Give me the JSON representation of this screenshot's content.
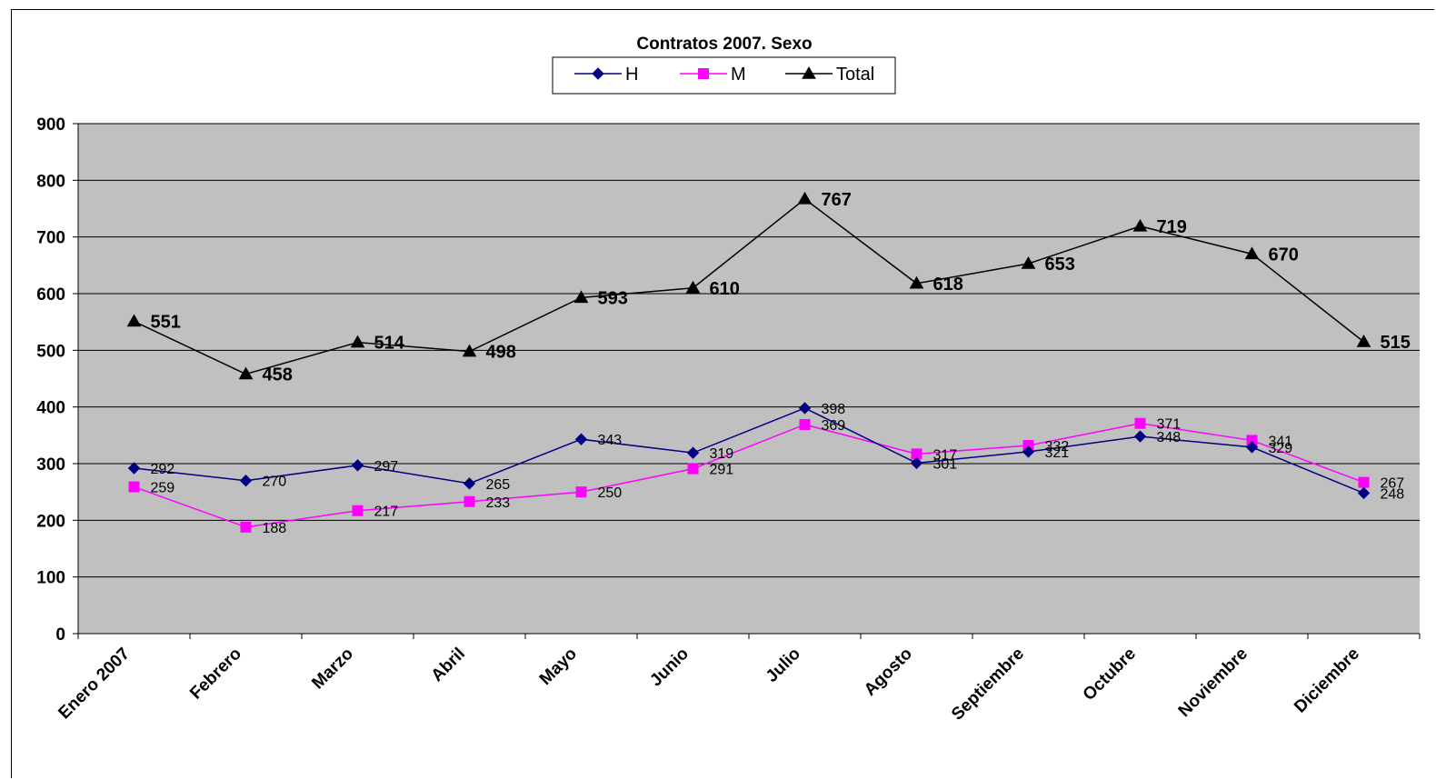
{
  "chart_data": {
    "type": "line",
    "title": "Contratos 2007. Sexo",
    "xlabel": "",
    "ylabel": "",
    "ylim": [
      0,
      900
    ],
    "yticks": [
      0,
      100,
      200,
      300,
      400,
      500,
      600,
      700,
      800,
      900
    ],
    "grid": true,
    "legend_position": "top-center",
    "plot_background": "#C0C0C0",
    "categories": [
      "Enero 2007",
      "Febrero",
      "Marzo",
      "Abril",
      "Mayo",
      "Junio",
      "Julio",
      "Agosto",
      "Septiembre",
      "Octubre",
      "Noviembre",
      "Diciembre"
    ],
    "series": [
      {
        "name": "H",
        "color": "#000080",
        "marker": "diamond",
        "values": [
          292,
          270,
          297,
          265,
          343,
          319,
          398,
          301,
          321,
          348,
          329,
          248
        ]
      },
      {
        "name": "M",
        "color": "#FF00FF",
        "marker": "square",
        "values": [
          259,
          188,
          217,
          233,
          250,
          291,
          369,
          317,
          332,
          371,
          341,
          267
        ]
      },
      {
        "name": "Total",
        "color": "#000000",
        "marker": "triangle",
        "values": [
          551,
          458,
          514,
          498,
          593,
          610,
          767,
          618,
          653,
          719,
          670,
          515
        ]
      }
    ]
  }
}
